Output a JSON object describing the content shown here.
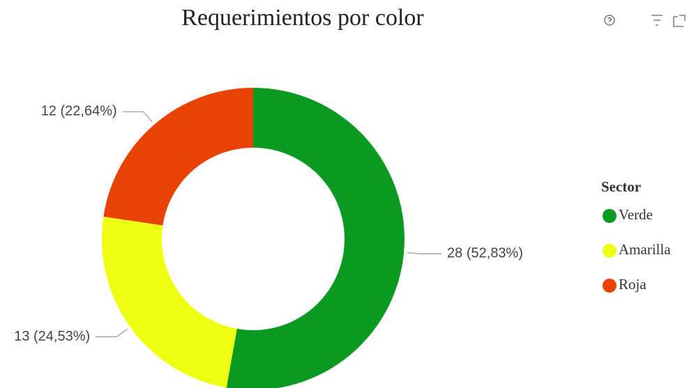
{
  "chart_data": {
    "type": "donut",
    "title": "Requerimientos por color",
    "categories": [
      "Verde",
      "Amarilla",
      "Roja"
    ],
    "values": [
      28,
      13,
      12
    ],
    "value_labels": [
      "28 (52,83%)",
      "13 (24,53%)",
      "12 (22,64%)"
    ],
    "colors": [
      "#0a9a22",
      "#eeff11",
      "#e84303"
    ],
    "legend_title": "Sector",
    "legend": "right"
  }
}
